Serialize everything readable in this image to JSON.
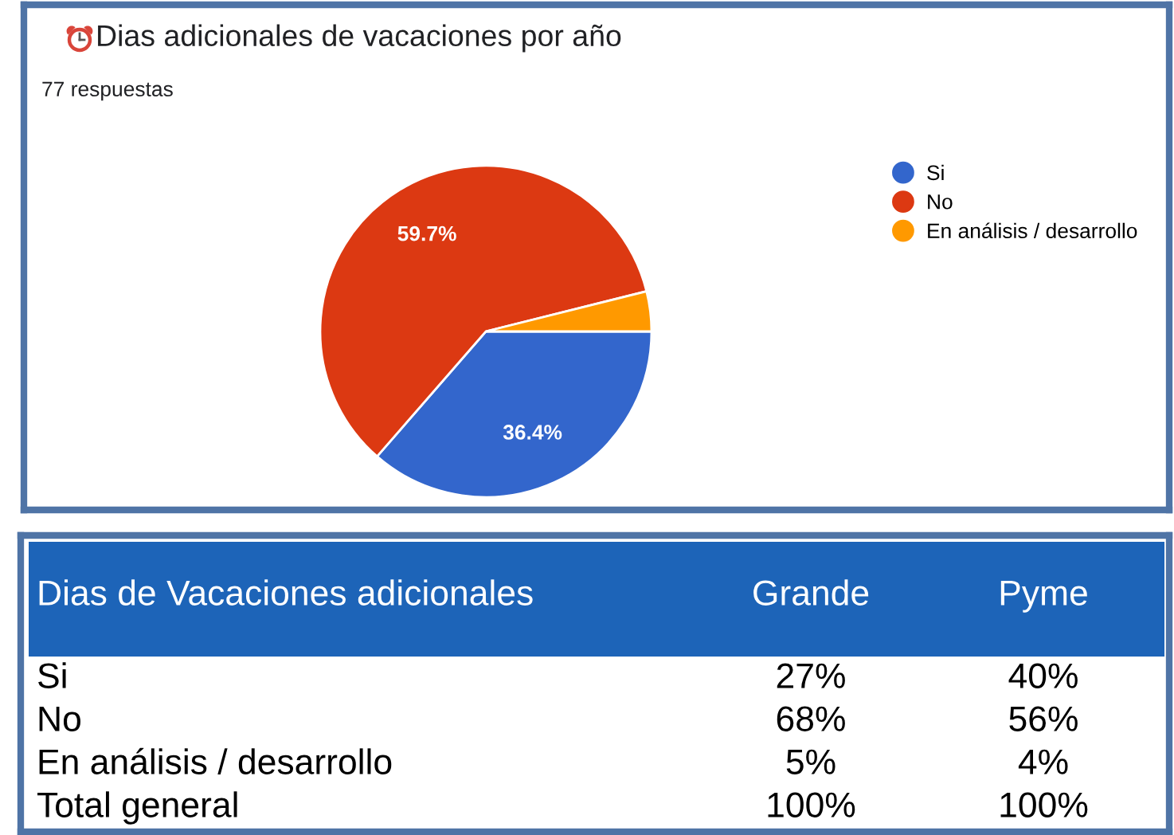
{
  "chart_data": [
    {
      "type": "pie",
      "title": "Dias adicionales de vacaciones por año",
      "subtitle": "77 respuestas",
      "categories": [
        "Si",
        "No",
        "En análisis / desarrollo"
      ],
      "values": [
        36.4,
        59.7,
        3.9
      ],
      "colors": [
        "#3366cc",
        "#dc3912",
        "#ff9900"
      ],
      "value_labels": [
        "36.4%",
        "59.7%",
        null
      ],
      "legend": "right"
    },
    {
      "type": "other",
      "title": "Dias de Vacaciones adicionales",
      "categories": [
        "Si",
        "No",
        "En análisis / desarrollo",
        "Total general"
      ],
      "series": [
        {
          "name": "Grande",
          "values": [
            27,
            68,
            5,
            100
          ],
          "value_labels": [
            "27%",
            "68%",
            "5%",
            "100%"
          ]
        },
        {
          "name": "Pyme",
          "values": [
            40,
            56,
            4,
            100
          ],
          "value_labels": [
            "40%",
            "56%",
            "4%",
            "100%"
          ]
        }
      ]
    }
  ]
}
